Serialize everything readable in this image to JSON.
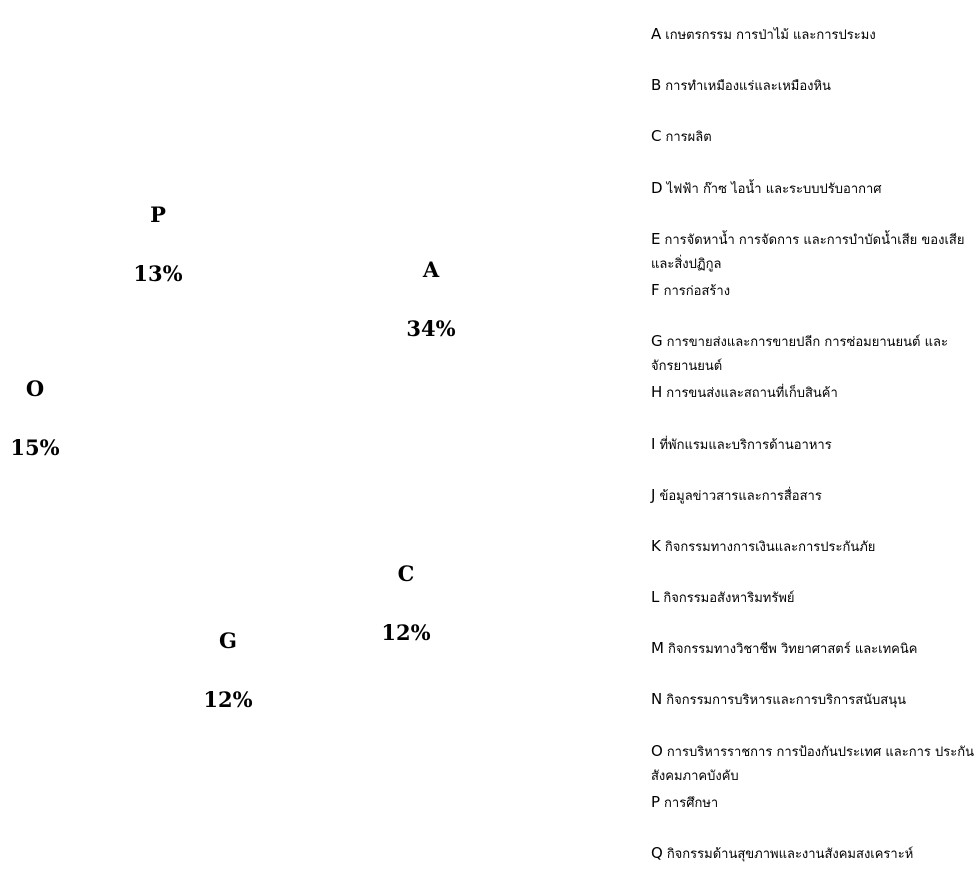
{
  "chart_data": {
    "type": "pie",
    "slices": [
      {
        "code": "A",
        "percent": "34%",
        "value": 34
      },
      {
        "code": "C",
        "percent": "12%",
        "value": 12
      },
      {
        "code": "G",
        "percent": "12%",
        "value": 12
      },
      {
        "code": "O",
        "percent": "15%",
        "value": 15
      },
      {
        "code": "P",
        "percent": "13%",
        "value": 13
      }
    ],
    "legend": [
      {
        "code": "A",
        "label": "เกษตรกรรม การป่าไม้ และการประมง"
      },
      {
        "code": "B",
        "label": "การทำเหมืองแร่และเหมืองหิน"
      },
      {
        "code": "C",
        "label": "การผลิต"
      },
      {
        "code": "D",
        "label": "ไฟฟ้า ก๊าซ ไอน้ำ และระบบปรับอากาศ"
      },
      {
        "code": "E",
        "label": "การจัดหาน้ำ การจัดการ และการบำบัดน้ำเสีย ของเสีย และสิ่งปฏิกูล"
      },
      {
        "code": "F",
        "label": "การก่อสร้าง"
      },
      {
        "code": "G",
        "label": "การขายส่งและการขายปลีก การซ่อมยานยนต์ และจักรยานยนต์"
      },
      {
        "code": "H",
        "label": "การขนส่งและสถานที่เก็บสินค้า"
      },
      {
        "code": "I",
        "label": "ที่พักแรมและบริการด้านอาหาร"
      },
      {
        "code": "J",
        "label": "ข้อมูลข่าวสารและการสื่อสาร"
      },
      {
        "code": "K",
        "label": "กิจกรรมทางการเงินและการประกันภัย"
      },
      {
        "code": "L",
        "label": "กิจกรรมอสังหาริมทรัพย์"
      },
      {
        "code": "M",
        "label": "กิจกรรมทางวิชาชีพ วิทยาศาสตร์ และเทคนิค"
      },
      {
        "code": "N",
        "label": "กิจกรรมการบริหารและการบริการสนับสนุน"
      },
      {
        "code": "O",
        "label": "การบริหารราชการ การป้องกันประเทศ และการ ประกันสังคมภาคบังคับ"
      },
      {
        "code": "P",
        "label": "การศึกษา"
      },
      {
        "code": "Q",
        "label": "กิจกรรมด้านสุขภาพและงานสังคมสงเคราะห์"
      }
    ]
  }
}
